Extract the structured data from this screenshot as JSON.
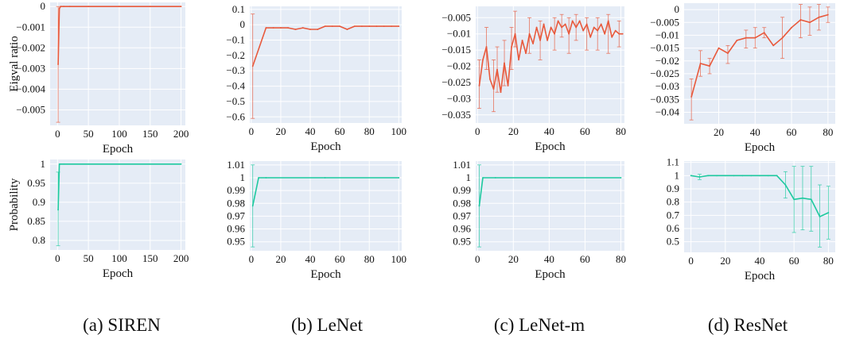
{
  "captions": [
    "(a) SIREN",
    "(b) LeNet",
    "(c) LeNet-m",
    "(d) ResNet"
  ],
  "chart_data": [
    {
      "type": "line",
      "ylabel": "Eigval ratio",
      "xlabel": "Epoch",
      "xlim": [
        -12,
        207
      ],
      "ylim": [
        -0.00575,
        0.0002
      ],
      "xticks": [
        0,
        50,
        100,
        150,
        200
      ],
      "xtick_labels": [
        "0",
        "50",
        "100",
        "150",
        "200"
      ],
      "yticks": [
        0,
        -0.001,
        -0.002,
        -0.003,
        -0.004,
        -0.005
      ],
      "ytick_labels": [
        "0",
        "−0.001",
        "−0.002",
        "−0.003",
        "−0.004",
        "−0.005"
      ],
      "color": "#e8593c",
      "grid": true,
      "x": [
        1,
        3,
        5,
        10,
        20,
        50,
        100,
        150,
        200
      ],
      "y": [
        -0.0028,
        -0.0001,
        0,
        0,
        0,
        0,
        0,
        0,
        0
      ],
      "error_bars": [
        {
          "x": 1,
          "low": -0.0056,
          "high": 0.0
        }
      ]
    },
    {
      "type": "line",
      "xlabel": "Epoch",
      "xlim": [
        -1,
        102
      ],
      "ylim": [
        -0.64,
        0.12
      ],
      "xticks": [
        0,
        20,
        40,
        60,
        80,
        100
      ],
      "xtick_labels": [
        "0",
        "20",
        "40",
        "60",
        "80",
        "100"
      ],
      "yticks": [
        0.1,
        0,
        -0.1,
        -0.2,
        -0.3,
        -0.4,
        -0.5,
        -0.6
      ],
      "ytick_labels": [
        "0.1",
        "0",
        "−0.1",
        "−0.2",
        "−0.3",
        "−0.4",
        "−0.5",
        "−0.6"
      ],
      "color": "#e8593c",
      "grid": true,
      "x": [
        1,
        10,
        15,
        20,
        25,
        30,
        35,
        40,
        45,
        50,
        55,
        60,
        65,
        70,
        75,
        80,
        85,
        90,
        95,
        100
      ],
      "y": [
        -0.27,
        -0.02,
        -0.02,
        -0.02,
        -0.02,
        -0.03,
        -0.02,
        -0.03,
        -0.03,
        -0.01,
        -0.01,
        -0.01,
        -0.03,
        -0.01,
        -0.01,
        -0.01,
        -0.01,
        -0.01,
        -0.01,
        -0.01
      ],
      "error_bars": [
        {
          "x": 1,
          "low": -0.61,
          "high": 0.07
        }
      ]
    },
    {
      "type": "line",
      "xlabel": "Epoch",
      "xlim": [
        -1,
        82
      ],
      "ylim": [
        -0.0375,
        -0.0015
      ],
      "xticks": [
        0,
        20,
        40,
        60,
        80
      ],
      "xtick_labels": [
        "0",
        "20",
        "40",
        "60",
        "80"
      ],
      "yticks": [
        -0.005,
        -0.01,
        -0.015,
        -0.02,
        -0.025,
        -0.03,
        -0.035
      ],
      "ytick_labels": [
        "−0.005",
        "−0.01",
        "−0.015",
        "−0.02",
        "−0.025",
        "−0.03",
        "−0.035"
      ],
      "color": "#e8593c",
      "grid": true,
      "x": [
        1,
        3,
        5,
        7,
        9,
        11,
        13,
        15,
        17,
        19,
        21,
        23,
        25,
        27,
        29,
        31,
        33,
        35,
        37,
        39,
        41,
        43,
        45,
        47,
        49,
        51,
        53,
        55,
        57,
        59,
        61,
        63,
        65,
        67,
        69,
        71,
        73,
        75,
        77,
        79,
        81
      ],
      "y": [
        -0.026,
        -0.018,
        -0.014,
        -0.024,
        -0.027,
        -0.021,
        -0.028,
        -0.019,
        -0.026,
        -0.014,
        -0.01,
        -0.018,
        -0.012,
        -0.016,
        -0.01,
        -0.013,
        -0.008,
        -0.012,
        -0.007,
        -0.012,
        -0.008,
        -0.01,
        -0.006,
        -0.008,
        -0.007,
        -0.01,
        -0.006,
        -0.008,
        -0.006,
        -0.009,
        -0.007,
        -0.011,
        -0.008,
        -0.009,
        -0.007,
        -0.01,
        -0.006,
        -0.011,
        -0.009,
        -0.01,
        -0.01
      ],
      "error_bars": [
        {
          "x": 1,
          "low": -0.033,
          "high": -0.018
        },
        {
          "x": 5,
          "low": -0.021,
          "high": -0.008
        },
        {
          "x": 9,
          "low": -0.034,
          "high": -0.018
        },
        {
          "x": 11,
          "low": -0.028,
          "high": -0.014
        },
        {
          "x": 15,
          "low": -0.026,
          "high": -0.012
        },
        {
          "x": 19,
          "low": -0.021,
          "high": -0.008
        },
        {
          "x": 21,
          "low": -0.014,
          "high": -0.003
        },
        {
          "x": 29,
          "low": -0.016,
          "high": -0.005
        },
        {
          "x": 35,
          "low": -0.018,
          "high": -0.006
        },
        {
          "x": 43,
          "low": -0.015,
          "high": -0.005
        },
        {
          "x": 47,
          "low": -0.011,
          "high": -0.004
        },
        {
          "x": 51,
          "low": -0.016,
          "high": -0.005
        },
        {
          "x": 55,
          "low": -0.012,
          "high": -0.004
        },
        {
          "x": 61,
          "low": -0.015,
          "high": -0.005
        },
        {
          "x": 67,
          "low": -0.015,
          "high": -0.005
        },
        {
          "x": 73,
          "low": -0.016,
          "high": -0.004
        },
        {
          "x": 79,
          "low": -0.014,
          "high": -0.006
        }
      ]
    },
    {
      "type": "line",
      "xlabel": "Epoch",
      "xlim": [
        1,
        84
      ],
      "ylim": [
        -0.0445,
        0.0025
      ],
      "xticks": [
        20,
        40,
        60,
        80
      ],
      "xtick_labels": [
        "20",
        "40",
        "60",
        "80"
      ],
      "yticks": [
        0,
        -0.005,
        -0.01,
        -0.015,
        -0.02,
        -0.025,
        -0.03,
        -0.035,
        -0.04
      ],
      "ytick_labels": [
        "0",
        "−0.005",
        "−0.01",
        "−0.015",
        "−0.02",
        "−0.025",
        "−0.03",
        "−0.035",
        "−0.04"
      ],
      "color": "#e8593c",
      "grid": true,
      "x": [
        5,
        10,
        15,
        20,
        25,
        30,
        35,
        40,
        45,
        50,
        55,
        60,
        65,
        70,
        75,
        80
      ],
      "y": [
        -0.034,
        -0.021,
        -0.022,
        -0.015,
        -0.017,
        -0.012,
        -0.011,
        -0.011,
        -0.009,
        -0.014,
        -0.011,
        -0.007,
        -0.004,
        -0.005,
        -0.003,
        -0.002
      ],
      "error_bars": [
        {
          "x": 5,
          "low": -0.043,
          "high": -0.027
        },
        {
          "x": 10,
          "low": -0.026,
          "high": -0.016
        },
        {
          "x": 15,
          "low": -0.025,
          "high": -0.019
        },
        {
          "x": 25,
          "low": -0.021,
          "high": -0.014
        },
        {
          "x": 35,
          "low": -0.015,
          "high": -0.008
        },
        {
          "x": 40,
          "low": -0.015,
          "high": -0.007
        },
        {
          "x": 45,
          "low": -0.011,
          "high": -0.007
        },
        {
          "x": 55,
          "low": -0.019,
          "high": -0.003
        },
        {
          "x": 65,
          "low": -0.011,
          "high": 0.002
        },
        {
          "x": 70,
          "low": -0.01,
          "high": 0.001
        },
        {
          "x": 75,
          "low": -0.008,
          "high": 0.002
        },
        {
          "x": 80,
          "low": -0.005,
          "high": 0.001
        }
      ]
    },
    {
      "type": "line",
      "ylabel": "Probability",
      "xlabel": "Epoch",
      "xlim": [
        -12,
        207
      ],
      "ylim": [
        0.775,
        1.012
      ],
      "xticks": [
        0,
        50,
        100,
        150,
        200
      ],
      "xtick_labels": [
        "0",
        "50",
        "100",
        "150",
        "200"
      ],
      "yticks": [
        1,
        0.95,
        0.9,
        0.85,
        0.8
      ],
      "ytick_labels": [
        "1",
        "0.95",
        "0.9",
        "0.85",
        "0.8"
      ],
      "color": "#1dc99f",
      "grid": true,
      "x": [
        1,
        3,
        5,
        10,
        50,
        100,
        150,
        200
      ],
      "y": [
        0.88,
        1,
        1,
        1,
        1,
        1,
        1,
        1
      ],
      "error_bars": [
        {
          "x": 1,
          "low": 0.786,
          "high": 0.979
        }
      ]
    },
    {
      "type": "line",
      "xlabel": "Epoch",
      "xlim": [
        -1,
        102
      ],
      "ylim": [
        0.943,
        1.013
      ],
      "xticks": [
        0,
        20,
        40,
        60,
        80,
        100
      ],
      "xtick_labels": [
        "0",
        "20",
        "40",
        "60",
        "80",
        "100"
      ],
      "yticks": [
        1.01,
        1,
        0.99,
        0.98,
        0.97,
        0.96,
        0.95
      ],
      "ytick_labels": [
        "1.01",
        "1",
        "0.99",
        "0.98",
        "0.97",
        "0.96",
        "0.95"
      ],
      "color": "#1dc99f",
      "grid": true,
      "x": [
        1,
        5,
        10,
        50,
        100
      ],
      "y": [
        0.978,
        1,
        1,
        1,
        1
      ],
      "error_bars": [
        {
          "x": 1,
          "low": 0.946,
          "high": 1.01
        }
      ]
    },
    {
      "type": "line",
      "xlabel": "Epoch",
      "xlim": [
        -1,
        82
      ],
      "ylim": [
        0.943,
        1.013
      ],
      "xticks": [
        0,
        20,
        40,
        60,
        80
      ],
      "xtick_labels": [
        "0",
        "20",
        "40",
        "60",
        "80"
      ],
      "yticks": [
        1.01,
        1,
        0.99,
        0.98,
        0.97,
        0.96,
        0.95
      ],
      "ytick_labels": [
        "1.01",
        "1",
        "0.99",
        "0.98",
        "0.97",
        "0.96",
        "0.95"
      ],
      "color": "#1dc99f",
      "grid": true,
      "x": [
        1,
        3,
        10,
        40,
        80
      ],
      "y": [
        0.978,
        1,
        1,
        1,
        1
      ],
      "error_bars": [
        {
          "x": 1,
          "low": 0.946,
          "high": 1.01
        }
      ]
    },
    {
      "type": "line",
      "xlabel": "Epoch",
      "xlim": [
        -4,
        84
      ],
      "ylim": [
        0.42,
        1.11
      ],
      "xticks": [
        0,
        20,
        40,
        60,
        80
      ],
      "xtick_labels": [
        "0",
        "20",
        "40",
        "60",
        "80"
      ],
      "yticks": [
        1.1,
        1,
        0.9,
        0.8,
        0.7,
        0.6,
        0.5
      ],
      "ytick_labels": [
        "1.1",
        "1",
        "0.9",
        "0.8",
        "0.7",
        "0.6",
        "0.5"
      ],
      "color": "#1dc99f",
      "grid": true,
      "x": [
        0,
        5,
        10,
        15,
        20,
        25,
        30,
        35,
        40,
        45,
        50,
        55,
        60,
        65,
        70,
        75,
        80
      ],
      "y": [
        1,
        0.99,
        1,
        1,
        1,
        1,
        1,
        1,
        1,
        1,
        1,
        0.93,
        0.82,
        0.83,
        0.82,
        0.69,
        0.72
      ],
      "error_bars": [
        {
          "x": 5,
          "low": 0.97,
          "high": 1.01
        },
        {
          "x": 55,
          "low": 0.83,
          "high": 1.03
        },
        {
          "x": 60,
          "low": 0.57,
          "high": 1.07
        },
        {
          "x": 65,
          "low": 0.59,
          "high": 1.07
        },
        {
          "x": 70,
          "low": 0.58,
          "high": 1.07
        },
        {
          "x": 75,
          "low": 0.46,
          "high": 0.93
        },
        {
          "x": 80,
          "low": 0.52,
          "high": 0.92
        }
      ]
    }
  ]
}
